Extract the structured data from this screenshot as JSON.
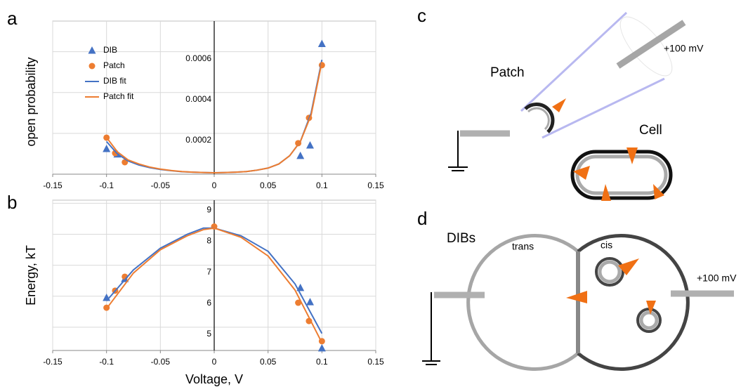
{
  "chart_data": [
    {
      "type": "scatter",
      "panel_label": "a",
      "y_label": "open probability",
      "xlim": [
        -0.15,
        0.15
      ],
      "xticks": [
        -0.15,
        -0.1,
        -0.05,
        0,
        0.05,
        0.1,
        0.15
      ],
      "ylim": [
        0,
        0.00075
      ],
      "yticks": [
        0.0002,
        0.0004,
        0.0006
      ],
      "grid": true,
      "legend": "upper left",
      "series": [
        {
          "name": "DIB",
          "color": "#4472c4",
          "marker": "triangle",
          "x": [
            -0.1,
            -0.09,
            0.08,
            0.089,
            0.1
          ],
          "values": [
            0.000124,
            9.7e-05,
            9e-05,
            0.000141,
            0.000638
          ]
        },
        {
          "name": "Patch",
          "color": "#ed7d31",
          "marker": "circle",
          "x": [
            -0.1,
            -0.092,
            -0.083,
            0.078,
            0.088,
            0.1
          ],
          "values": [
            0.000179,
            0.000103,
            5.86e-05,
            0.000152,
            0.000276,
            0.000534
          ]
        },
        {
          "name": "DIB fit",
          "color": "#4472c4",
          "marker": "line",
          "x": [
            -0.1,
            -0.09,
            -0.08,
            -0.07,
            -0.06,
            -0.05,
            -0.04,
            -0.03,
            -0.02,
            -0.01,
            0,
            0.01,
            0.02,
            0.03,
            0.04,
            0.05,
            0.06,
            0.07,
            0.08,
            0.09,
            0.1
          ],
          "values": [
            0.00016,
            0.0001,
            6.5e-05,
            4.5e-05,
            3.2e-05,
            2.3e-05,
            1.7e-05,
            1.2e-05,
            1e-05,
            8e-06,
            7e-06,
            8e-06,
            1e-05,
            1.3e-05,
            2e-05,
            3e-05,
            5e-05,
            9e-05,
            0.00016,
            0.0003,
            0.00056
          ]
        },
        {
          "name": "Patch fit",
          "color": "#ed7d31",
          "marker": "line",
          "x": [
            -0.1,
            -0.09,
            -0.08,
            -0.07,
            -0.06,
            -0.05,
            -0.04,
            -0.03,
            -0.02,
            -0.01,
            0,
            0.01,
            0.02,
            0.03,
            0.04,
            0.05,
            0.06,
            0.07,
            0.08,
            0.09,
            0.1
          ],
          "values": [
            0.00018,
            0.00011,
            7e-05,
            5e-05,
            3.5e-05,
            2.5e-05,
            1.8e-05,
            1.3e-05,
            1e-05,
            8e-06,
            7e-06,
            8e-06,
            1e-05,
            1.3e-05,
            2e-05,
            3e-05,
            5e-05,
            9e-05,
            0.00016,
            0.00029,
            0.00055
          ]
        }
      ]
    },
    {
      "type": "scatter",
      "panel_label": "b",
      "y_label": "Energy, kT",
      "x_label": "Voltage, V",
      "xlim": [
        -0.15,
        0.15
      ],
      "xticks": [
        -0.15,
        -0.1,
        -0.05,
        0,
        0.05,
        0.1,
        0.15
      ],
      "ylim": [
        4.25,
        9.1
      ],
      "yticks": [
        5,
        6,
        7,
        8,
        9
      ],
      "grid": true,
      "series": [
        {
          "name": "DIB",
          "color": "#4472c4",
          "marker": "triangle",
          "x": [
            -0.1,
            -0.083,
            0.08,
            0.089,
            0.1
          ],
          "values": [
            5.95,
            6.56,
            6.27,
            5.81,
            4.32
          ]
        },
        {
          "name": "Patch",
          "color": "#ed7d31",
          "marker": "circle",
          "x": [
            -0.1,
            -0.092,
            -0.083,
            0,
            0.078,
            0.088,
            0.1
          ],
          "values": [
            5.63,
            6.18,
            6.63,
            8.25,
            5.79,
            5.2,
            4.55
          ]
        },
        {
          "name": "DIB fit",
          "color": "#4472c4",
          "marker": "line",
          "x": [
            -0.1,
            -0.075,
            -0.05,
            -0.025,
            -0.01,
            0,
            0.025,
            0.05,
            0.075,
            0.1
          ],
          "values": [
            5.85,
            6.85,
            7.55,
            8.0,
            8.2,
            8.2,
            7.95,
            7.45,
            6.4,
            4.8
          ]
        },
        {
          "name": "Patch fit",
          "color": "#ed7d31",
          "marker": "line",
          "x": [
            -0.1,
            -0.075,
            -0.05,
            -0.025,
            -0.01,
            0,
            0.025,
            0.05,
            0.075,
            0.1
          ],
          "values": [
            5.6,
            6.75,
            7.5,
            7.95,
            8.15,
            8.2,
            7.9,
            7.3,
            6.2,
            4.5
          ]
        }
      ]
    }
  ],
  "diagrams": {
    "c": {
      "panel_label": "c",
      "patch": "Patch",
      "cell": "Cell",
      "voltage": "+100 mV"
    },
    "d": {
      "panel_label": "d",
      "title": "DIBs",
      "trans": "trans",
      "cis": "cis",
      "voltage": "+100 mV"
    }
  }
}
